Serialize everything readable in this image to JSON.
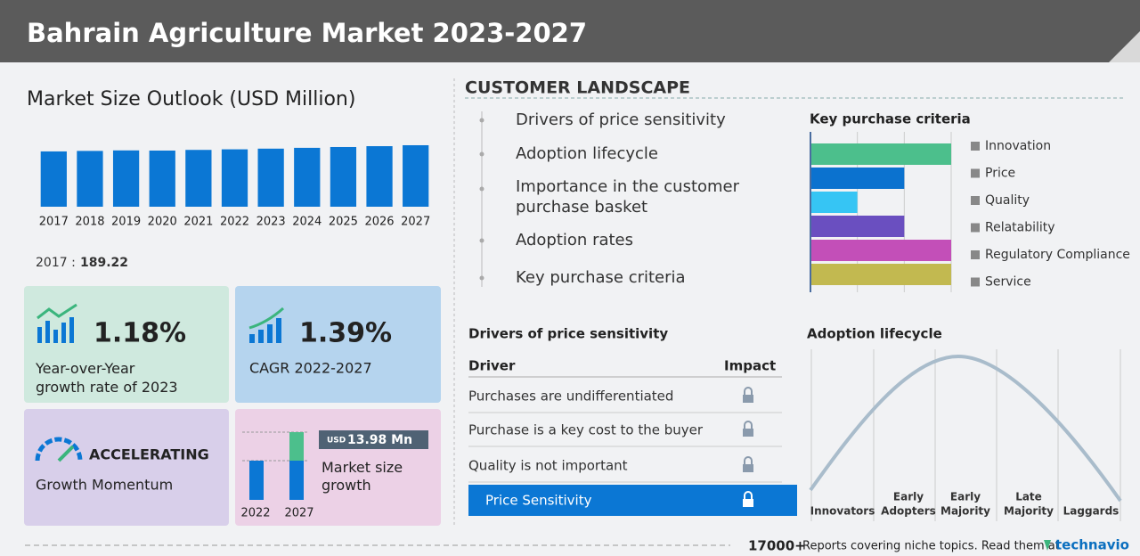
{
  "header": {
    "title": "Bahrain Agriculture Market 2023-2027"
  },
  "chart_data": [
    {
      "type": "bar",
      "title": "Market Size Outlook (USD Million)",
      "categories": [
        "2017",
        "2018",
        "2019",
        "2020",
        "2021",
        "2022",
        "2023",
        "2024",
        "2025",
        "2026",
        "2027"
      ],
      "values": [
        189.22,
        190.9,
        192.7,
        192.1,
        194.4,
        196.4,
        198.7,
        201.5,
        204.3,
        207.2,
        210.4
      ],
      "color": "#0b77d4",
      "ylim": [
        0,
        250
      ]
    },
    {
      "type": "hbar",
      "title": "Key purchase criteria",
      "categories": [
        "Innovation",
        "Price",
        "Quality",
        "Relatability",
        "Regulatory Compliance",
        "Service"
      ],
      "values": [
        3,
        2,
        1,
        2,
        3,
        3
      ],
      "colors": [
        "#4cbf8c",
        "#0b72cf",
        "#36c5f4",
        "#6a4fc0",
        "#c34fb8",
        "#c2b950"
      ],
      "xlim": [
        0,
        3
      ],
      "xticks": [
        0,
        1,
        2,
        3
      ],
      "grid": true
    }
  ],
  "base": {
    "label": "2017 :"
  },
  "cards": [
    {
      "value": "1.18%",
      "label": [
        "Year-over-Year",
        "growth rate of 2023"
      ]
    },
    {
      "value": "1.39%",
      "label": [
        "CAGR 2022-2027"
      ]
    },
    {
      "value": "ACCELERATING",
      "label": [
        "Growth Momentum"
      ]
    },
    {
      "currency": "USD",
      "value": "13.98 Mn",
      "label": [
        "Market size",
        "growth"
      ],
      "years": [
        "2022",
        "2027"
      ]
    }
  ],
  "landscape": {
    "title": "CUSTOMER LANDSCAPE",
    "items": [
      [
        "Drivers of price sensitivity"
      ],
      [
        "Adoption lifecycle"
      ],
      [
        "Importance in the customer",
        "purchase basket"
      ],
      [
        "Adoption rates"
      ],
      [
        "Key purchase criteria"
      ]
    ]
  },
  "drivers": {
    "title": "Drivers of price sensitivity",
    "header": [
      "Driver",
      "Impact"
    ],
    "rows": [
      "Purchases are undifferentiated",
      "Purchase is a key cost to the buyer",
      "Quality is not important",
      "Price Sensitivity"
    ]
  },
  "adoption": {
    "title": "Adoption lifecycle",
    "stages": [
      [
        "Innovators"
      ],
      [
        "Early",
        "Adopters"
      ],
      [
        "Early",
        "Majority"
      ],
      [
        "Late",
        "Majority"
      ],
      [
        "Laggards"
      ]
    ]
  },
  "footer": {
    "count": "17000+",
    "text": "Reports covering niche topics. Read them at",
    "brand": "technavio"
  }
}
